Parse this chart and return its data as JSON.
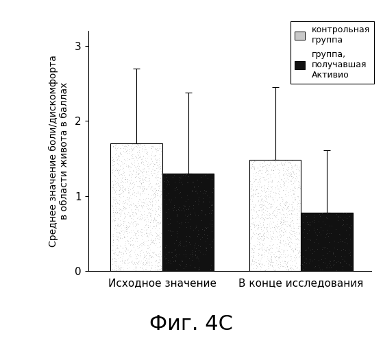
{
  "groups": [
    "Исходное значение",
    "В конце исследования"
  ],
  "bar1_values": [
    1.7,
    1.48
  ],
  "bar2_values": [
    1.3,
    0.78
  ],
  "bar1_errors": [
    1.0,
    0.97
  ],
  "bar2_errors": [
    1.08,
    0.83
  ],
  "bar1_color": "#c8c8c8",
  "bar2_color": "#111111",
  "bar1_hatch": "",
  "bar2_hatch": "",
  "ylabel": "Среднее значение боли/дискомфорта\nв области живота в баллах",
  "ylim": [
    0,
    3.2
  ],
  "yticks": [
    0,
    1,
    2,
    3
  ],
  "legend_label1": "контрольная\nгруппа",
  "legend_label2": "группа,\nполучавшая\nАктивио",
  "figure_label": "Фиг. 4С",
  "bar_width": 0.28,
  "group_centers": [
    0.35,
    1.1
  ]
}
